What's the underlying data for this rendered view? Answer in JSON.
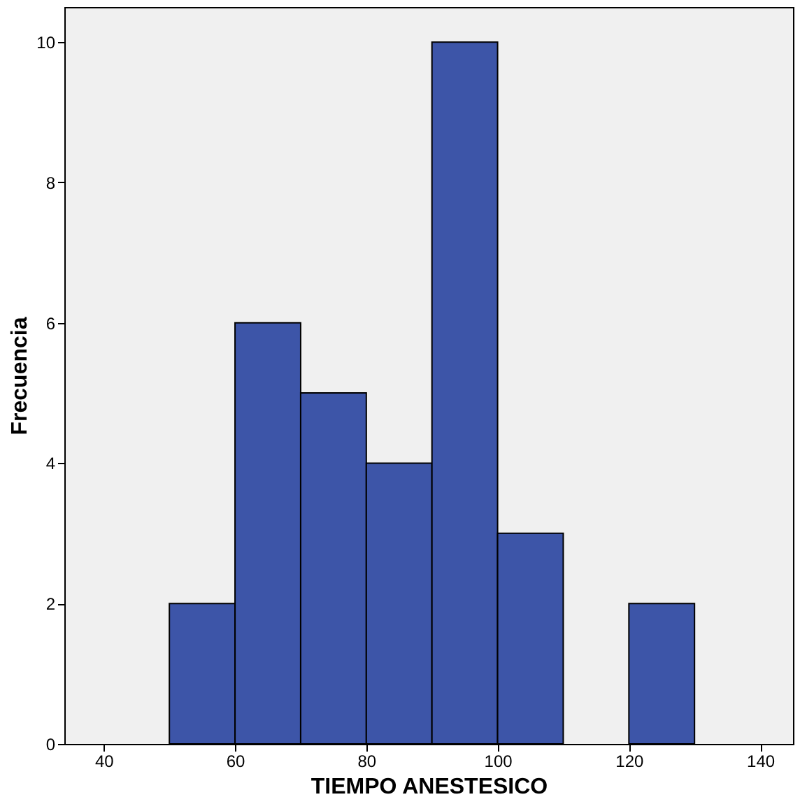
{
  "chart_data": {
    "type": "histogram",
    "xlabel": "TIEMPO ANESTESICO",
    "ylabel": "Frecuencia",
    "bins": [
      50,
      60,
      70,
      80,
      90,
      100,
      110,
      120,
      130
    ],
    "values": [
      2,
      6,
      5,
      4,
      10,
      3,
      0,
      2
    ],
    "color": "#3d55a8",
    "xlim": [
      34,
      145
    ],
    "ylim": [
      0,
      10.5
    ],
    "xticks": [
      40,
      60,
      80,
      100,
      120,
      140
    ],
    "yticks": [
      0,
      2,
      4,
      6,
      8,
      10
    ]
  }
}
